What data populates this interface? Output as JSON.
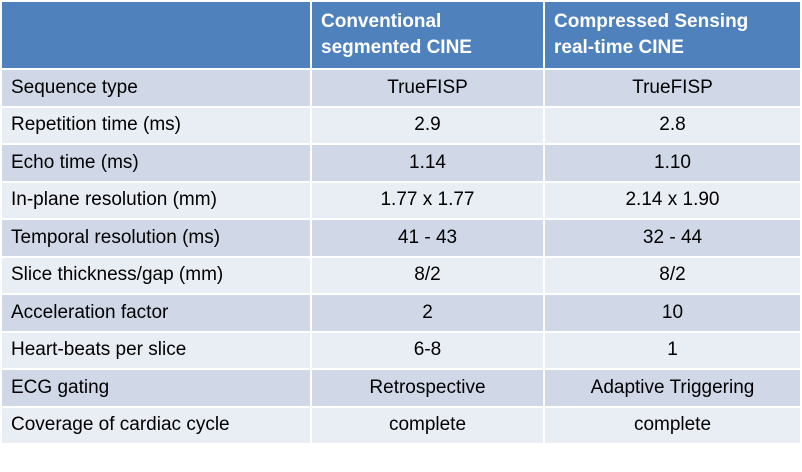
{
  "table": {
    "header": [
      "Conventional segmented CINE",
      "Compressed Sensing real-time CINE"
    ],
    "rows": [
      [
        "Sequence type",
        "TrueFISP",
        "TrueFISP"
      ],
      [
        "Repetition time (ms)",
        "2.9",
        "2.8"
      ],
      [
        "Echo time (ms)",
        "1.14",
        "1.10"
      ],
      [
        "In-plane resolution (mm)",
        "1.77 x 1.77",
        "2.14 x 1.90"
      ],
      [
        "Temporal resolution (ms)",
        "41 - 43",
        "32 - 44"
      ],
      [
        "Slice thickness/gap (mm)",
        "8/2",
        "8/2"
      ],
      [
        "Acceleration factor",
        "2",
        "10"
      ],
      [
        "Heart-beats per slice",
        "6-8",
        "1"
      ],
      [
        "ECG gating",
        "Retrospective",
        "Adaptive Triggering"
      ],
      [
        "Coverage of cardiac cycle",
        "complete",
        "complete"
      ]
    ]
  }
}
